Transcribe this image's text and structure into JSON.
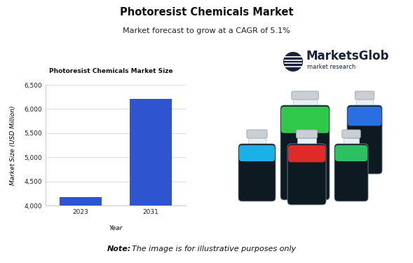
{
  "header": {
    "title": "Photoresist Chemicals Market",
    "subtitle": "Market forecast to grow at a CAGR of 5.1%"
  },
  "logo": {
    "name": "MarketsGlob",
    "tagline": "market research"
  },
  "note": {
    "label": "Note:",
    "text": "The image is for illustrative purposes only"
  },
  "chart_data": {
    "type": "bar",
    "title": "Photoresist Chemicals Market Size",
    "x_label": "Year",
    "y_label": "Market Size (USD Million)",
    "categories": [
      "2023",
      "2031"
    ],
    "values": [
      4170,
      6210
    ],
    "color": "#2f54d0",
    "ylim": [
      4000,
      6500
    ],
    "yticks": [
      {
        "value": 4000,
        "label": "4,000"
      },
      {
        "value": 4500,
        "label": "4,500"
      },
      {
        "value": 5000,
        "label": "5,000"
      },
      {
        "value": 5500,
        "label": "5,500"
      },
      {
        "value": 6000,
        "label": "6,000"
      },
      {
        "value": 6500,
        "label": "6,500"
      }
    ],
    "grid": true
  }
}
